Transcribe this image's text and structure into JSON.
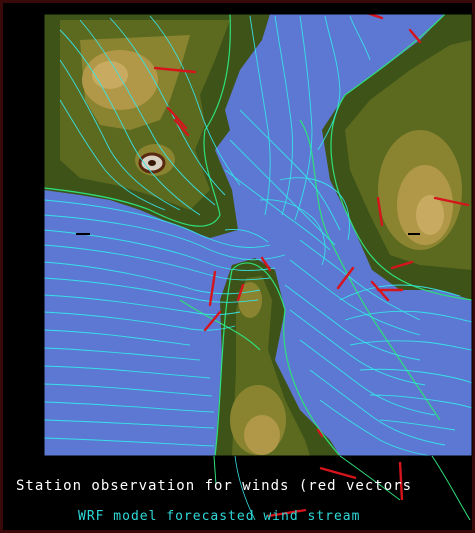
{
  "captions": {
    "observation": "Station observation for winds (red vectors",
    "model": "WRF model forecasted wind stream"
  },
  "colors": {
    "background": "#000000",
    "frame": "#3a0a0a",
    "water": "#5d78d2",
    "terrain_dark": "#3e5318",
    "terrain_mid": "#6f7a24",
    "terrain_light": "#bfa14a",
    "streamline": "#35e6ea",
    "coastline": "#2ee07a",
    "station_vector": "#d6141c",
    "caption_white": "#ffffff",
    "caption_cyan": "#2fd9d9"
  }
}
